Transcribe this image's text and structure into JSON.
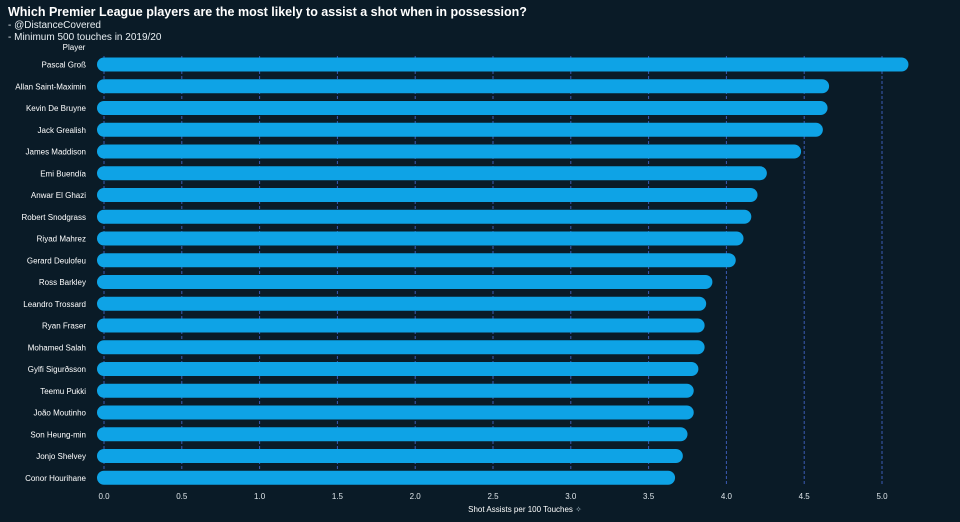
{
  "header": {
    "title": "Which Premier League players are the most likely to assist a shot when in possession?",
    "line1": "- @DistanceCovered",
    "line2": "- Minimum 500 touches in 2019/20"
  },
  "chart_data": {
    "type": "bar",
    "orientation": "horizontal",
    "title": "Which Premier League players are the most likely to assist a shot when in possession?",
    "ylabel": "Player",
    "xlabel": "Shot Assists per 100 Touches",
    "xlabel_suffix": "✧",
    "xlim": [
      0,
      5.2
    ],
    "xticks": [
      0.0,
      0.5,
      1.0,
      1.5,
      2.0,
      2.5,
      3.0,
      3.5,
      4.0,
      4.5,
      5.0
    ],
    "xtick_labels": [
      "0.0",
      "0.5",
      "1.0",
      "1.5",
      "2.0",
      "2.5",
      "3.0",
      "3.5",
      "4.0",
      "4.5",
      "5.0"
    ],
    "grid": true,
    "categories": [
      "Pascal Groß",
      "Allan Saint-Maximin",
      "Kevin De Bruyne",
      "Jack Grealish",
      "James Maddison",
      "Emi Buendía",
      "Anwar El Ghazi",
      "Robert Snodgrass",
      "Riyad Mahrez",
      "Gerard Deulofeu",
      "Ross Barkley",
      "Leandro Trossard",
      "Ryan Fraser",
      "Mohamed Salah",
      "Gylfi Sigurðsson",
      "Teemu Pukki",
      "João Moutinho",
      "Son Heung-min",
      "Jonjo Shelvey",
      "Conor Hourihane"
    ],
    "values": [
      5.17,
      4.66,
      4.65,
      4.62,
      4.48,
      4.26,
      4.2,
      4.16,
      4.11,
      4.06,
      3.91,
      3.87,
      3.86,
      3.86,
      3.82,
      3.79,
      3.79,
      3.75,
      3.72,
      3.67
    ],
    "bar_color": "#0ea3e6",
    "grid_color": "#3b5bb5"
  }
}
